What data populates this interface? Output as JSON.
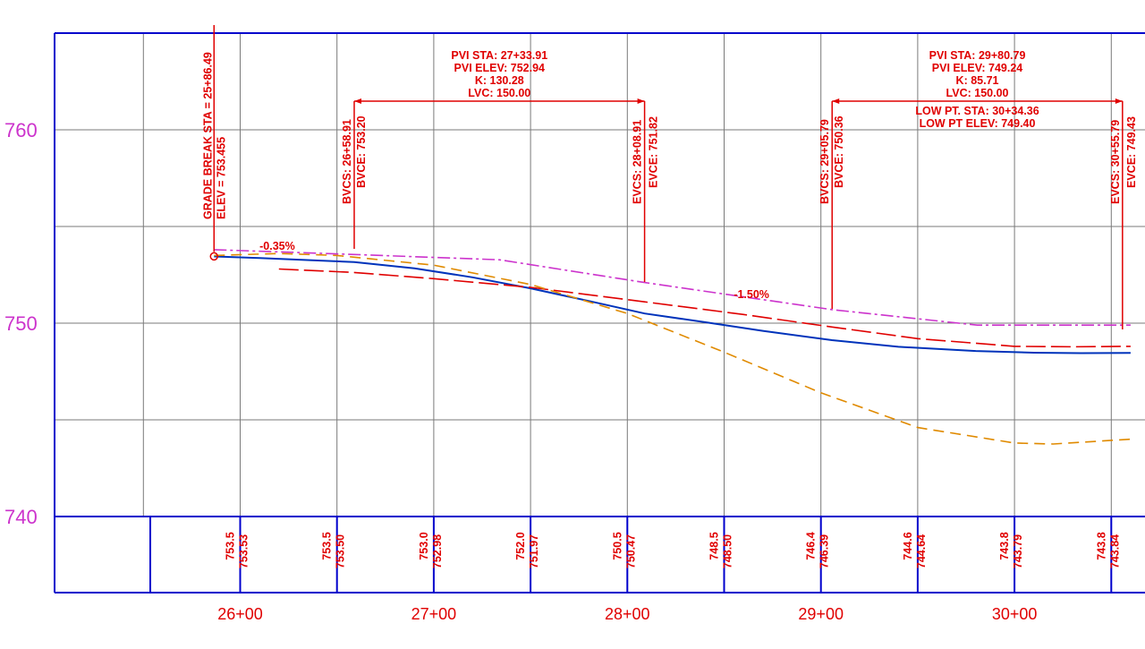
{
  "chart_data": {
    "type": "line",
    "title": "",
    "xlabel": "",
    "ylabel": "",
    "station_labels": [
      "26+00",
      "27+00",
      "28+00",
      "29+00",
      "30+00"
    ],
    "elevation_labels": [
      "760",
      "750",
      "740"
    ],
    "xlim": [
      2508,
      3060
    ],
    "ylim": [
      736,
      765
    ],
    "grade_break": {
      "station": 2586.49,
      "elevation": 753.455,
      "text_sta": "GRADE BREAK STA = 25+86.49",
      "text_elev": "ELEV = 753.455"
    },
    "grades": [
      {
        "text": "-0.35%",
        "x": 2610,
        "y": 753.8
      },
      {
        "text": "-1.50%",
        "x": 2855,
        "y": 751.3
      }
    ],
    "vertical_curves": [
      {
        "pvi_sta": "PVI STA:  27+33.91",
        "pvi_elev": "PVI ELEV:  752.94",
        "k": "K:  130.28",
        "lvc": "LVC:  150.00",
        "bvcs_station": 2658.91,
        "evcs_station": 2808.91,
        "bvcs_text": "BVCS:  26+58.91",
        "bvce_text": "BVCE:  753.20",
        "evcs_text": "EVCS:  28+08.91",
        "evce_text": "EVCE:  751.82"
      },
      {
        "pvi_sta": "PVI STA:  29+80.79",
        "pvi_elev": "PVI ELEV:  749.24",
        "k": "K:  85.71",
        "lvc": "LVC:  150.00",
        "low_pt_sta": "LOW PT. STA:  30+34.36",
        "low_pt_elev": "LOW PT ELEV:  749.40",
        "bvcs_station": 2905.79,
        "evcs_station": 3055.79,
        "bvcs_text": "BVCS:  29+05.79",
        "bvce_text": "BVCE:  750.36",
        "evcs_text": "EVCS:  30+55.79",
        "evce_text": "EVCE:  749.43"
      }
    ],
    "band_values": [
      {
        "station": 2600,
        "existing": "753.5",
        "proposed": "753.53"
      },
      {
        "station": 2650,
        "existing": "753.5",
        "proposed": "753.50"
      },
      {
        "station": 2700,
        "existing": "753.0",
        "proposed": "752.98"
      },
      {
        "station": 2750,
        "existing": "752.0",
        "proposed": "751.97"
      },
      {
        "station": 2800,
        "existing": "750.5",
        "proposed": "750.47"
      },
      {
        "station": 2850,
        "existing": "748.5",
        "proposed": "748.50"
      },
      {
        "station": 2900,
        "existing": "746.4",
        "proposed": "746.39"
      },
      {
        "station": 2950,
        "existing": "744.6",
        "proposed": "744.64"
      },
      {
        "station": 3000,
        "existing": "743.8",
        "proposed": "743.79"
      },
      {
        "station": 3050,
        "existing": "743.8",
        "proposed": "743.84"
      }
    ],
    "series": [
      {
        "color": "#0033bb",
        "dash": "solid",
        "x": [
          2586.49,
          2610,
          2640,
          2658.91,
          2690,
          2720,
          2750,
          2780,
          2808.91,
          2840,
          2870,
          2905.79,
          2940,
          2980,
          3010,
          3034.36,
          3060
        ],
        "y": [
          753.45,
          753.37,
          753.24,
          753.16,
          752.84,
          752.37,
          751.8,
          751.15,
          750.5,
          750.05,
          749.6,
          749.12,
          748.78,
          748.56,
          748.47,
          748.45,
          748.46
        ]
      },
      {
        "color": "#cc33cc",
        "dash": "dashdot",
        "x": [
          2586.49,
          2658.91,
          2733.91,
          2808.91,
          2905.79,
          2980.79,
          3060
        ],
        "y": [
          753.8,
          753.55,
          753.28,
          752.1,
          750.7,
          749.9,
          749.9
        ]
      },
      {
        "color": "#e00000",
        "dash": "longdash",
        "x": [
          2620,
          2658.91,
          2700,
          2750,
          2808.91,
          2860,
          2905.79,
          2950,
          3000,
          3030,
          3060
        ],
        "y": [
          752.8,
          752.62,
          752.3,
          751.85,
          751.1,
          750.45,
          749.8,
          749.2,
          748.8,
          748.78,
          748.8
        ]
      },
      {
        "color": "#e08a00",
        "dash": "dash",
        "x": [
          2586.49,
          2620,
          2650,
          2700,
          2750,
          2800,
          2850,
          2900,
          2950,
          3000,
          3020,
          3060
        ],
        "y": [
          753.5,
          753.6,
          753.5,
          753.0,
          752.0,
          750.5,
          748.5,
          746.4,
          744.6,
          743.8,
          743.75,
          744.0
        ]
      }
    ]
  }
}
